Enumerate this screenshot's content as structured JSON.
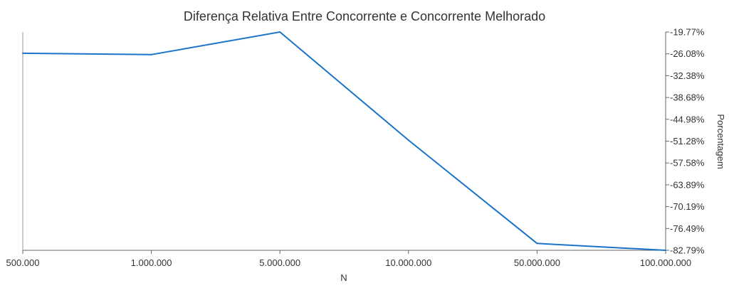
{
  "chart_data": {
    "type": "line",
    "title": "Diferença Relativa Entre Concorrente e Concorrente Melhorado",
    "xlabel": "N",
    "ylabel": "Porcentagem",
    "categories": [
      "500.000",
      "1.000.000",
      "5.000.000",
      "10.000.000",
      "50.000.000",
      "100.000.000"
    ],
    "series": [
      {
        "values": [
          -25.9,
          -26.3,
          -19.77,
          -51.0,
          -80.8,
          -82.79
        ]
      }
    ],
    "y_ticks": [
      -19.77,
      -26.08,
      -32.38,
      -38.68,
      -44.98,
      -51.28,
      -57.58,
      -63.89,
      -70.19,
      -76.49,
      -82.79
    ],
    "y_tick_labels": [
      "-19.77%",
      "-26.08%",
      "-32.38%",
      "-38.68%",
      "-44.98%",
      "-51.28%",
      "-57.58%",
      "-63.89%",
      "-70.19%",
      "-76.49%",
      "-82.79%"
    ],
    "ylim": [
      -82.79,
      -19.77
    ],
    "y_axis_side": "right",
    "grid": false,
    "line_color": "#1a73c8"
  }
}
